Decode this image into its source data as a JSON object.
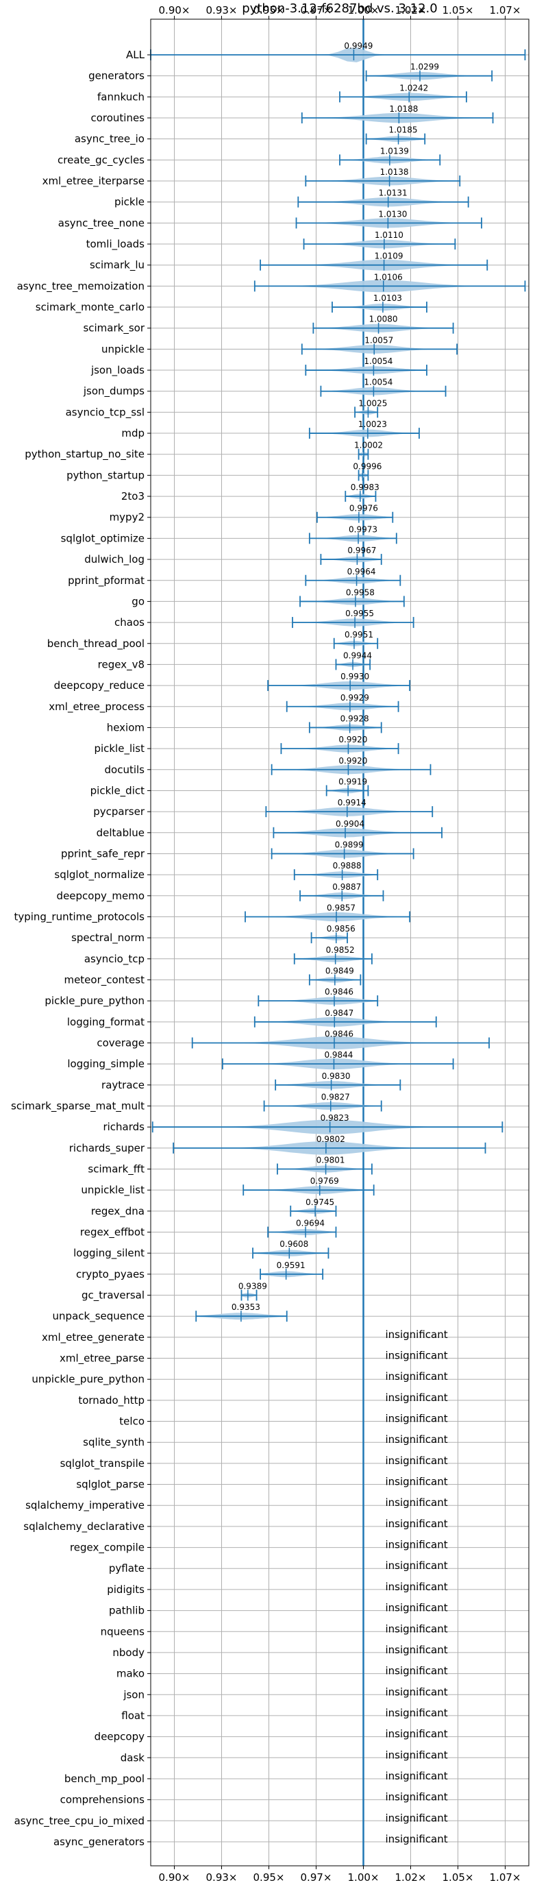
{
  "chart_data": {
    "type": "violin",
    "title": "python-3.12-f6287bd vs. 3.12.0",
    "x_ticks": [
      0.9,
      0.925,
      0.95,
      0.975,
      1.0,
      1.025,
      1.05,
      1.075
    ],
    "x_tick_labels": [
      "0.90×",
      "0.93×",
      "0.95×",
      "0.97×",
      "1.00×",
      "1.02×",
      "1.05×",
      "1.07×"
    ],
    "xlim": [
      0.8875,
      1.0875
    ],
    "baseline": 1.0,
    "grid": true,
    "insignificant_label": "insignificant",
    "benchmarks": [
      {
        "name": "ALL",
        "mean": 0.9949,
        "label": "0.9949",
        "min": 0.8875,
        "max": 1.0855,
        "spread": 0.006
      },
      {
        "name": "generators",
        "mean": 1.0299,
        "label": "1.0299",
        "min": 1.0015,
        "max": 1.068,
        "spread": 0.012
      },
      {
        "name": "fannkuch",
        "mean": 1.0242,
        "label": "1.0242",
        "min": 0.9875,
        "max": 1.0545,
        "spread": 0.013
      },
      {
        "name": "coroutines",
        "mean": 1.0188,
        "label": "1.0188",
        "min": 0.9675,
        "max": 1.0685,
        "spread": 0.017
      },
      {
        "name": "async_tree_io",
        "mean": 1.0185,
        "label": "1.0185",
        "min": 1.0015,
        "max": 1.0325,
        "spread": 0.008
      },
      {
        "name": "create_gc_cycles",
        "mean": 1.0139,
        "label": "1.0139",
        "min": 0.9875,
        "max": 1.0405,
        "spread": 0.01
      },
      {
        "name": "xml_etree_iterparse",
        "mean": 1.0138,
        "label": "1.0138",
        "min": 0.9695,
        "max": 1.051,
        "spread": 0.014
      },
      {
        "name": "pickle",
        "mean": 1.0131,
        "label": "1.0131",
        "min": 0.9655,
        "max": 1.0555,
        "spread": 0.014
      },
      {
        "name": "async_tree_none",
        "mean": 1.013,
        "label": "1.0130",
        "min": 0.9645,
        "max": 1.0625,
        "spread": 0.016
      },
      {
        "name": "tomli_loads",
        "mean": 1.011,
        "label": "1.0110",
        "min": 0.9685,
        "max": 1.0485,
        "spread": 0.013
      },
      {
        "name": "scimark_lu",
        "mean": 1.0109,
        "label": "1.0109",
        "min": 0.9455,
        "max": 1.0655,
        "spread": 0.017
      },
      {
        "name": "async_tree_memoization",
        "mean": 1.0106,
        "label": "1.0106",
        "min": 0.9425,
        "max": 1.0855,
        "spread": 0.02
      },
      {
        "name": "scimark_monte_carlo",
        "mean": 1.0103,
        "label": "1.0103",
        "min": 0.9835,
        "max": 1.0335,
        "spread": 0.009
      },
      {
        "name": "scimark_sor",
        "mean": 1.008,
        "label": "1.0080",
        "min": 0.9735,
        "max": 1.0475,
        "spread": 0.013
      },
      {
        "name": "unpickle",
        "mean": 1.0057,
        "label": "1.0057",
        "min": 0.9675,
        "max": 1.0495,
        "spread": 0.013
      },
      {
        "name": "json_loads",
        "mean": 1.0054,
        "label": "1.0054",
        "min": 0.9695,
        "max": 1.0335,
        "spread": 0.012
      },
      {
        "name": "json_dumps",
        "mean": 1.0054,
        "label": "1.0054",
        "min": 0.9775,
        "max": 1.0435,
        "spread": 0.011
      },
      {
        "name": "asyncio_tcp_ssl",
        "mean": 1.0025,
        "label": "1.0025",
        "min": 0.9955,
        "max": 1.0075,
        "spread": 0.003
      },
      {
        "name": "mdp",
        "mean": 1.0023,
        "label": "1.0023",
        "min": 0.9715,
        "max": 1.0295,
        "spread": 0.01
      },
      {
        "name": "python_startup_no_site",
        "mean": 1.0002,
        "label": "1.0002",
        "min": 0.9975,
        "max": 1.0025,
        "spread": 0.002
      },
      {
        "name": "python_startup",
        "mean": 0.9996,
        "label": "0.9996",
        "min": 0.9975,
        "max": 1.0025,
        "spread": 0.002
      },
      {
        "name": "2to3",
        "mean": 0.9983,
        "label": "0.9983",
        "min": 0.9905,
        "max": 1.0065,
        "spread": 0.004
      },
      {
        "name": "mypy2",
        "mean": 0.9976,
        "label": "0.9976",
        "min": 0.9755,
        "max": 1.0155,
        "spread": 0.009
      },
      {
        "name": "sqlglot_optimize",
        "mean": 0.9973,
        "label": "0.9973",
        "min": 0.9715,
        "max": 1.0175,
        "spread": 0.009
      },
      {
        "name": "dulwich_log",
        "mean": 0.9967,
        "label": "0.9967",
        "min": 0.9775,
        "max": 1.0095,
        "spread": 0.007
      },
      {
        "name": "pprint_pformat",
        "mean": 0.9964,
        "label": "0.9964",
        "min": 0.9695,
        "max": 1.0195,
        "spread": 0.009
      },
      {
        "name": "go",
        "mean": 0.9958,
        "label": "0.9958",
        "min": 0.9665,
        "max": 1.0215,
        "spread": 0.01
      },
      {
        "name": "chaos",
        "mean": 0.9955,
        "label": "0.9955",
        "min": 0.9625,
        "max": 1.0265,
        "spread": 0.011
      },
      {
        "name": "bench_thread_pool",
        "mean": 0.9951,
        "label": "0.9951",
        "min": 0.9845,
        "max": 1.0075,
        "spread": 0.005
      },
      {
        "name": "regex_v8",
        "mean": 0.9944,
        "label": "0.9944",
        "min": 0.9855,
        "max": 1.0035,
        "spread": 0.004
      },
      {
        "name": "deepcopy_reduce",
        "mean": 0.993,
        "label": "0.9930",
        "min": 0.9495,
        "max": 1.0245,
        "spread": 0.013
      },
      {
        "name": "xml_etree_process",
        "mean": 0.9929,
        "label": "0.9929",
        "min": 0.9595,
        "max": 1.0185,
        "spread": 0.011
      },
      {
        "name": "hexiom",
        "mean": 0.9928,
        "label": "0.9928",
        "min": 0.9715,
        "max": 1.0095,
        "spread": 0.008
      },
      {
        "name": "pickle_list",
        "mean": 0.992,
        "label": "0.9920",
        "min": 0.9565,
        "max": 1.0185,
        "spread": 0.011
      },
      {
        "name": "docutils",
        "mean": 0.992,
        "label": "0.9920",
        "min": 0.9515,
        "max": 1.0355,
        "spread": 0.013
      },
      {
        "name": "pickle_dict",
        "mean": 0.9919,
        "label": "0.9919",
        "min": 0.9805,
        "max": 1.0025,
        "spread": 0.005
      },
      {
        "name": "pycparser",
        "mean": 0.9914,
        "label": "0.9914",
        "min": 0.9485,
        "max": 1.0365,
        "spread": 0.014
      },
      {
        "name": "deltablue",
        "mean": 0.9904,
        "label": "0.9904",
        "min": 0.9525,
        "max": 1.0415,
        "spread": 0.014
      },
      {
        "name": "pprint_safe_repr",
        "mean": 0.9899,
        "label": "0.9899",
        "min": 0.9515,
        "max": 1.0265,
        "spread": 0.012
      },
      {
        "name": "sqlglot_normalize",
        "mean": 0.9888,
        "label": "0.9888",
        "min": 0.9635,
        "max": 1.0075,
        "spread": 0.009
      },
      {
        "name": "deepcopy_memo",
        "mean": 0.9887,
        "label": "0.9887",
        "min": 0.9665,
        "max": 1.0105,
        "spread": 0.008
      },
      {
        "name": "typing_runtime_protocols",
        "mean": 0.9857,
        "label": "0.9857",
        "min": 0.9375,
        "max": 1.0245,
        "spread": 0.014
      },
      {
        "name": "spectral_norm",
        "mean": 0.9856,
        "label": "0.9856",
        "min": 0.9725,
        "max": 0.9915,
        "spread": 0.005
      },
      {
        "name": "asyncio_tcp",
        "mean": 0.9852,
        "label": "0.9852",
        "min": 0.9635,
        "max": 1.0045,
        "spread": 0.009
      },
      {
        "name": "meteor_contest",
        "mean": 0.9849,
        "label": "0.9849",
        "min": 0.9715,
        "max": 0.9985,
        "spread": 0.006
      },
      {
        "name": "pickle_pure_python",
        "mean": 0.9846,
        "label": "0.9846",
        "min": 0.9445,
        "max": 1.0075,
        "spread": 0.012
      },
      {
        "name": "logging_format",
        "mean": 0.9847,
        "label": "0.9847",
        "min": 0.9425,
        "max": 1.0385,
        "spread": 0.014
      },
      {
        "name": "coverage",
        "mean": 0.9846,
        "label": "0.9846",
        "min": 0.9095,
        "max": 1.0665,
        "spread": 0.02
      },
      {
        "name": "logging_simple",
        "mean": 0.9844,
        "label": "0.9844",
        "min": 0.9255,
        "max": 1.0475,
        "spread": 0.016
      },
      {
        "name": "raytrace",
        "mean": 0.983,
        "label": "0.9830",
        "min": 0.9535,
        "max": 1.0195,
        "spread": 0.012
      },
      {
        "name": "scimark_sparse_mat_mult",
        "mean": 0.9827,
        "label": "0.9827",
        "min": 0.9475,
        "max": 1.0095,
        "spread": 0.011
      },
      {
        "name": "richards",
        "mean": 0.9823,
        "label": "0.9823",
        "min": 0.8885,
        "max": 1.0735,
        "spread": 0.022
      },
      {
        "name": "richards_super",
        "mean": 0.9802,
        "label": "0.9802",
        "min": 0.8995,
        "max": 1.0645,
        "spread": 0.02
      },
      {
        "name": "scimark_fft",
        "mean": 0.9801,
        "label": "0.9801",
        "min": 0.9545,
        "max": 1.0045,
        "spread": 0.009
      },
      {
        "name": "unpickle_list",
        "mean": 0.9769,
        "label": "0.9769",
        "min": 0.9365,
        "max": 1.0055,
        "spread": 0.012
      },
      {
        "name": "regex_dna",
        "mean": 0.9745,
        "label": "0.9745",
        "min": 0.9615,
        "max": 0.9855,
        "spread": 0.006
      },
      {
        "name": "regex_effbot",
        "mean": 0.9694,
        "label": "0.9694",
        "min": 0.9495,
        "max": 0.9855,
        "spread": 0.008
      },
      {
        "name": "logging_silent",
        "mean": 0.9608,
        "label": "0.9608",
        "min": 0.9415,
        "max": 0.9815,
        "spread": 0.009
      },
      {
        "name": "crypto_pyaes",
        "mean": 0.9591,
        "label": "0.9591",
        "min": 0.9455,
        "max": 0.9785,
        "spread": 0.008
      },
      {
        "name": "gc_traversal",
        "mean": 0.9389,
        "label": "0.9389",
        "min": 0.9355,
        "max": 0.9435,
        "spread": 0.003
      },
      {
        "name": "unpack_sequence",
        "mean": 0.9353,
        "label": "0.9353",
        "min": 0.9115,
        "max": 0.9595,
        "spread": 0.012
      },
      {
        "name": "xml_etree_generate",
        "insignificant": true
      },
      {
        "name": "xml_etree_parse",
        "insignificant": true
      },
      {
        "name": "unpickle_pure_python",
        "insignificant": true
      },
      {
        "name": "tornado_http",
        "insignificant": true
      },
      {
        "name": "telco",
        "insignificant": true
      },
      {
        "name": "sqlite_synth",
        "insignificant": true
      },
      {
        "name": "sqlglot_transpile",
        "insignificant": true
      },
      {
        "name": "sqlglot_parse",
        "insignificant": true
      },
      {
        "name": "sqlalchemy_imperative",
        "insignificant": true
      },
      {
        "name": "sqlalchemy_declarative",
        "insignificant": true
      },
      {
        "name": "regex_compile",
        "insignificant": true
      },
      {
        "name": "pyflate",
        "insignificant": true
      },
      {
        "name": "pidigits",
        "insignificant": true
      },
      {
        "name": "pathlib",
        "insignificant": true
      },
      {
        "name": "nqueens",
        "insignificant": true
      },
      {
        "name": "nbody",
        "insignificant": true
      },
      {
        "name": "mako",
        "insignificant": true
      },
      {
        "name": "json",
        "insignificant": true
      },
      {
        "name": "float",
        "insignificant": true
      },
      {
        "name": "deepcopy",
        "insignificant": true
      },
      {
        "name": "dask",
        "insignificant": true
      },
      {
        "name": "bench_mp_pool",
        "insignificant": true
      },
      {
        "name": "comprehensions",
        "insignificant": true
      },
      {
        "name": "async_tree_cpu_io_mixed",
        "insignificant": true
      },
      {
        "name": "async_generators",
        "insignificant": true
      }
    ],
    "colors": {
      "violin_fill": "#aecde6",
      "whisker": "#1f77b4",
      "grid": "#b0b0b0",
      "baseline": "#1f77b4"
    }
  }
}
